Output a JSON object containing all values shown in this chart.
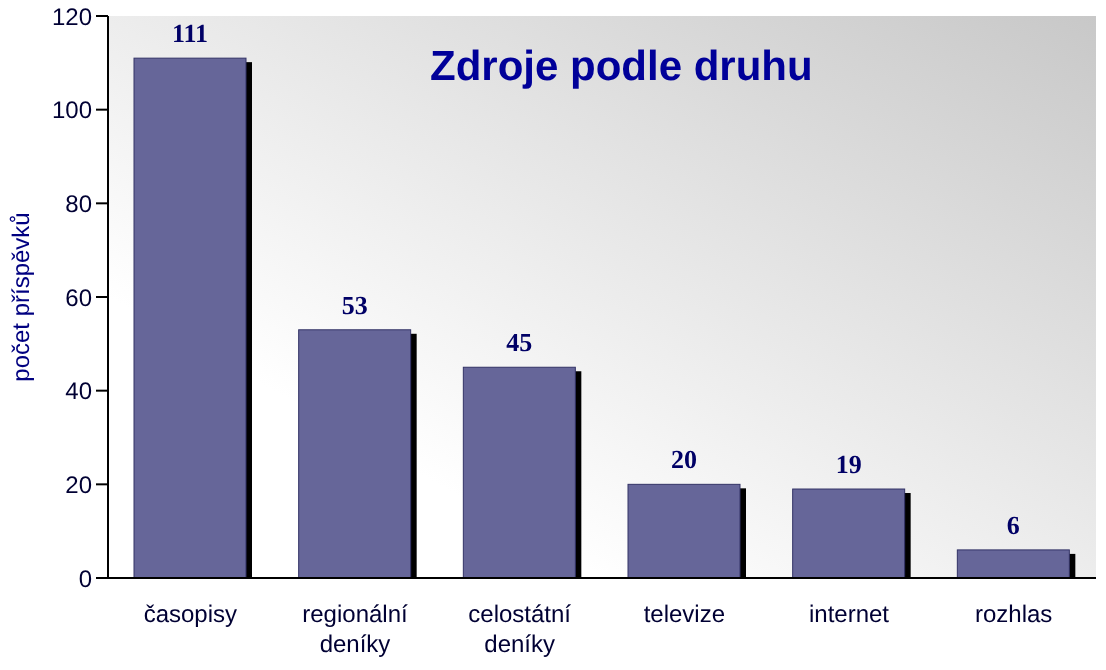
{
  "chart_data": {
    "type": "bar",
    "title": "Zdroje podle druhu",
    "ylabel": "počet příspěvků",
    "categories": [
      "časopisy",
      "regionální deníky",
      "celostátní deníky",
      "televize",
      "internet",
      "rozhlas"
    ],
    "values": [
      111,
      53,
      45,
      20,
      19,
      6
    ],
    "color": "#666699",
    "ylim": [
      0,
      120
    ],
    "yticks": [
      0,
      20,
      40,
      60,
      80,
      100,
      120
    ],
    "grid": false,
    "data_labels": true,
    "legend": false
  }
}
